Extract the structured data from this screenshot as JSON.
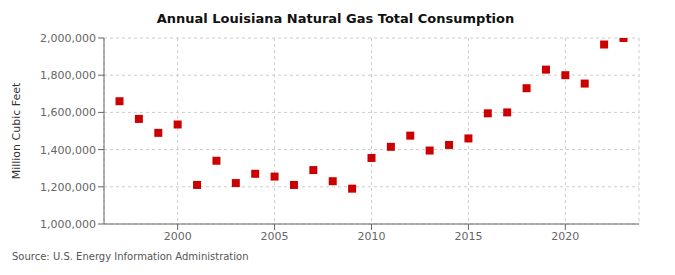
{
  "chart_data": {
    "type": "scatter",
    "title": "Annual Louisiana Natural Gas Total Consumption",
    "ylabel": "Million Cubic Feet",
    "annotations": [
      "Source: U.S. Energy Information Administration"
    ],
    "x": [
      1997,
      1998,
      1999,
      2000,
      2001,
      2002,
      2003,
      2004,
      2005,
      2006,
      2007,
      2008,
      2009,
      2010,
      2011,
      2012,
      2013,
      2014,
      2015,
      2016,
      2017,
      2018,
      2019,
      2020,
      2021,
      2022,
      2023
    ],
    "values": [
      1660000,
      1565000,
      1490000,
      1535000,
      1210000,
      1340000,
      1220000,
      1270000,
      1255000,
      1210000,
      1290000,
      1230000,
      1190000,
      1355000,
      1415000,
      1475000,
      1395000,
      1425000,
      1460000,
      1595000,
      1600000,
      1730000,
      1830000,
      1800000,
      1755000,
      1965000,
      2000000
    ],
    "color": "#cc0000",
    "marker": "square",
    "xlim": [
      1996.2,
      2023.8
    ],
    "ylim": [
      1000000,
      2000000
    ],
    "xticks": [
      2000,
      2005,
      2010,
      2015,
      2020
    ],
    "yticks": [
      {
        "value": 1000000,
        "label": "1,000,000"
      },
      {
        "value": 1200000,
        "label": "1,200,000"
      },
      {
        "value": 1400000,
        "label": "1,400,000"
      },
      {
        "value": 1600000,
        "label": "1,600,000"
      },
      {
        "value": 1800000,
        "label": "1,800,000"
      },
      {
        "value": 2000000,
        "label": "2,000,000"
      }
    ],
    "grid": true
  }
}
